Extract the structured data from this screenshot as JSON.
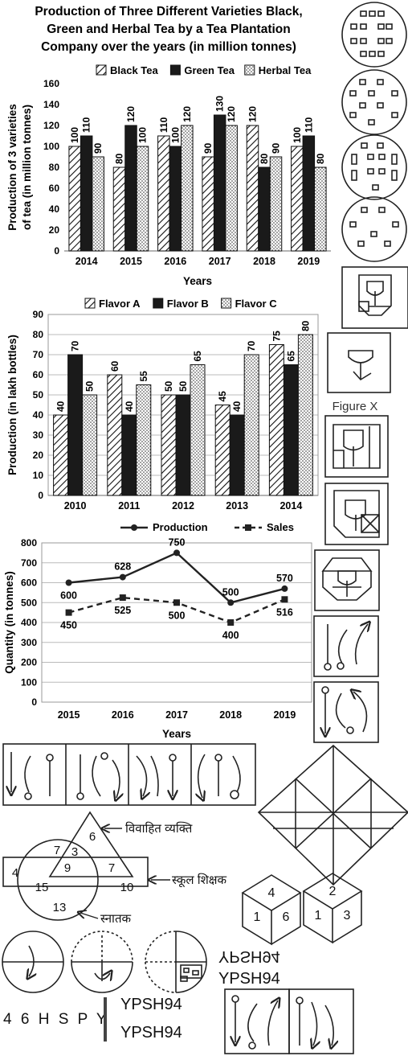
{
  "chart_data": [
    {
      "type": "bar",
      "title": "Production of Three Different Varieties Black, Green and Herbal Tea by a Tea Plantation Company over the years (in million tonnes)",
      "title_lines": [
        "Production of Three Different Varieties Black,",
        "Green and Herbal Tea by a Tea Plantation",
        "Company over the years (in million tonnes)"
      ],
      "xlabel": "Years",
      "ylabel_lines": [
        "Production of 3 varieties",
        "of tea (in million tonnes)"
      ],
      "ylim": [
        0,
        160
      ],
      "yticks": [
        "0",
        "20",
        "40",
        "60",
        "80",
        "100",
        "120",
        "140",
        "160"
      ],
      "legend_position": "top",
      "categories": [
        "2014",
        "2015",
        "2016",
        "2017",
        "2018",
        "2019"
      ],
      "series": [
        {
          "name": "Black Tea",
          "values": [
            100,
            80,
            110,
            90,
            120,
            100
          ],
          "pattern": "hatch"
        },
        {
          "name": "Green Tea",
          "values": [
            110,
            120,
            100,
            130,
            80,
            110
          ],
          "pattern": "solid"
        },
        {
          "name": "Herbal Tea",
          "values": [
            90,
            100,
            120,
            120,
            90,
            80
          ],
          "pattern": "dots"
        }
      ]
    },
    {
      "type": "bar",
      "xlabel": "",
      "ylabel_lines": [
        "Production (in lakh bottles)"
      ],
      "ylim": [
        0,
        90
      ],
      "yticks": [
        "0",
        "10",
        "20",
        "30",
        "40",
        "50",
        "60",
        "70",
        "80",
        "90"
      ],
      "legend_position": "top",
      "grid": true,
      "categories": [
        "2010",
        "2011",
        "2012",
        "2013",
        "2014"
      ],
      "series": [
        {
          "name": "Flavor A",
          "values": [
            40,
            60,
            50,
            45,
            75
          ],
          "pattern": "hatch"
        },
        {
          "name": "Flavor B",
          "values": [
            70,
            40,
            50,
            40,
            65
          ],
          "pattern": "solid"
        },
        {
          "name": "Flavor C",
          "values": [
            50,
            55,
            65,
            70,
            80
          ],
          "pattern": "dots"
        }
      ]
    },
    {
      "type": "line",
      "xlabel": "Years",
      "ylabel_lines": [
        "Quantity (in tonnes)"
      ],
      "ylim": [
        0,
        800
      ],
      "yticks": [
        "0",
        "100",
        "200",
        "300",
        "400",
        "500",
        "600",
        "700",
        "800"
      ],
      "legend_position": "top",
      "grid": true,
      "categories": [
        "2015",
        "2016",
        "2017",
        "2018",
        "2019"
      ],
      "series": [
        {
          "name": "Production",
          "values": [
            600,
            628,
            750,
            500,
            570
          ],
          "style": "solid"
        },
        {
          "name": "Sales",
          "values": [
            450,
            525,
            500,
            400,
            516
          ],
          "style": "dashed"
        }
      ]
    }
  ],
  "figure_x_label": "Figure X",
  "venn": {
    "labels": {
      "married": "विवाहित व्यक्ति",
      "teacher": "स्कूल शिक्षक",
      "graduate": "स्नातक"
    },
    "numbers": {
      "tri_top": "6",
      "tri_circle": "7",
      "tri_center": "3",
      "all_three": "9",
      "tri_rect": "7",
      "rect_left": "4",
      "circle_rect": "15",
      "rect_right": "10",
      "circle_bottom": "13"
    }
  },
  "dice": [
    {
      "top": "4",
      "left": "1",
      "right": "6"
    },
    {
      "top": "2",
      "left": "1",
      "right": "3"
    }
  ],
  "mirror_text": {
    "original": "46HSPY",
    "spaced": "4 6 H S P Y",
    "options": [
      "YPSH94",
      "YPSH94",
      "YPSH94",
      "YPSH94"
    ]
  }
}
